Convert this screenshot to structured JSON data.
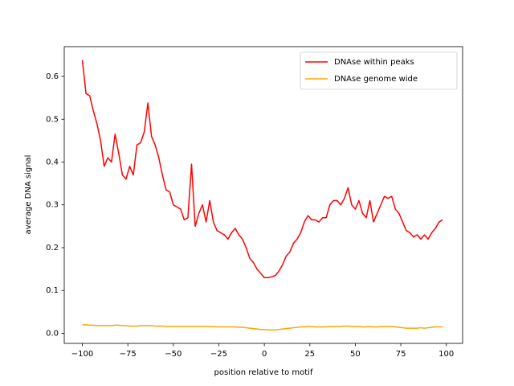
{
  "chart_data": {
    "type": "line",
    "xlabel": "position relative to motif",
    "ylabel": "average DNA signal",
    "x": [
      -100,
      -98,
      -96,
      -94,
      -92,
      -90,
      -88,
      -86,
      -84,
      -82,
      -80,
      -78,
      -76,
      -74,
      -72,
      -70,
      -68,
      -66,
      -64,
      -62,
      -60,
      -58,
      -56,
      -54,
      -52,
      -50,
      -48,
      -46,
      -44,
      -42,
      -40,
      -38,
      -36,
      -34,
      -32,
      -30,
      -28,
      -26,
      -24,
      -22,
      -20,
      -18,
      -16,
      -14,
      -12,
      -10,
      -8,
      -6,
      -4,
      -2,
      0,
      2,
      4,
      6,
      8,
      10,
      12,
      14,
      16,
      18,
      20,
      22,
      24,
      26,
      28,
      30,
      32,
      34,
      36,
      38,
      40,
      42,
      44,
      46,
      48,
      50,
      52,
      54,
      56,
      58,
      60,
      62,
      64,
      66,
      68,
      70,
      72,
      74,
      76,
      78,
      80,
      82,
      84,
      86,
      88,
      90,
      92,
      94,
      96,
      98
    ],
    "series": [
      {
        "name": "DNAse within peaks",
        "color": "#ff0000",
        "values": [
          0.638,
          0.56,
          0.555,
          0.52,
          0.49,
          0.45,
          0.39,
          0.41,
          0.4,
          0.465,
          0.42,
          0.37,
          0.36,
          0.39,
          0.37,
          0.44,
          0.445,
          0.47,
          0.538,
          0.46,
          0.44,
          0.41,
          0.37,
          0.335,
          0.33,
          0.3,
          0.295,
          0.29,
          0.265,
          0.27,
          0.395,
          0.25,
          0.28,
          0.3,
          0.26,
          0.31,
          0.26,
          0.24,
          0.235,
          0.23,
          0.22,
          0.235,
          0.245,
          0.23,
          0.22,
          0.2,
          0.175,
          0.165,
          0.15,
          0.14,
          0.13,
          0.13,
          0.132,
          0.135,
          0.145,
          0.16,
          0.18,
          0.19,
          0.21,
          0.22,
          0.235,
          0.26,
          0.275,
          0.265,
          0.265,
          0.26,
          0.27,
          0.27,
          0.3,
          0.31,
          0.31,
          0.3,
          0.315,
          0.34,
          0.3,
          0.29,
          0.31,
          0.28,
          0.27,
          0.31,
          0.26,
          0.28,
          0.3,
          0.32,
          0.315,
          0.32,
          0.29,
          0.28,
          0.26,
          0.24,
          0.235,
          0.225,
          0.23,
          0.22,
          0.23,
          0.22,
          0.235,
          0.245,
          0.26,
          0.265
        ]
      },
      {
        "name": "DNAse genome wide",
        "color": "#ffa500",
        "values": [
          0.02,
          0.02,
          0.019,
          0.019,
          0.018,
          0.018,
          0.018,
          0.018,
          0.018,
          0.019,
          0.019,
          0.018,
          0.018,
          0.017,
          0.017,
          0.017,
          0.018,
          0.018,
          0.018,
          0.018,
          0.017,
          0.017,
          0.017,
          0.016,
          0.016,
          0.016,
          0.016,
          0.016,
          0.016,
          0.016,
          0.016,
          0.016,
          0.016,
          0.016,
          0.016,
          0.016,
          0.016,
          0.015,
          0.015,
          0.015,
          0.015,
          0.015,
          0.015,
          0.014,
          0.014,
          0.013,
          0.012,
          0.011,
          0.01,
          0.009,
          0.009,
          0.008,
          0.008,
          0.008,
          0.009,
          0.01,
          0.011,
          0.012,
          0.013,
          0.014,
          0.015,
          0.015,
          0.016,
          0.016,
          0.015,
          0.015,
          0.015,
          0.015,
          0.016,
          0.016,
          0.016,
          0.016,
          0.017,
          0.017,
          0.016,
          0.016,
          0.016,
          0.015,
          0.015,
          0.016,
          0.015,
          0.015,
          0.016,
          0.016,
          0.016,
          0.016,
          0.015,
          0.014,
          0.013,
          0.012,
          0.012,
          0.012,
          0.012,
          0.013,
          0.012,
          0.013,
          0.014,
          0.015,
          0.015,
          0.015
        ]
      }
    ],
    "xlim": [
      -109.95,
      108.95
    ],
    "ylim": [
      -0.0235,
      0.6695
    ],
    "xticks": [
      {
        "value": -100,
        "label": "−100"
      },
      {
        "value": -75,
        "label": "−75"
      },
      {
        "value": -50,
        "label": "−50"
      },
      {
        "value": -25,
        "label": "−25"
      },
      0,
      25,
      50,
      75,
      100
    ],
    "yticks": [
      {
        "value": 0,
        "label": "0.0"
      },
      0.1,
      0.2,
      0.3,
      0.4,
      0.5,
      0.6
    ],
    "legend": "upper right",
    "grid": false
  }
}
